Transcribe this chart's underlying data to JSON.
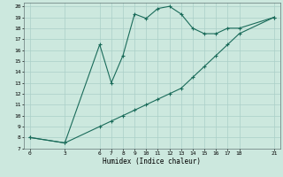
{
  "xlabel": "Humidex (Indice chaleur)",
  "bg_color": "#cce8de",
  "grid_color": "#aacfc8",
  "line_color": "#1a6b5a",
  "curve1_x": [
    0,
    3,
    6,
    7,
    8,
    9,
    10,
    11,
    12,
    13,
    14,
    15,
    16,
    17,
    18,
    21
  ],
  "curve1_y": [
    8,
    7.5,
    16.5,
    13,
    15.5,
    19.3,
    18.9,
    19.8,
    20,
    19.3,
    18,
    17.5,
    17.5,
    18,
    18,
    19
  ],
  "curve2_x": [
    0,
    3,
    6,
    7,
    8,
    9,
    10,
    11,
    12,
    13,
    14,
    15,
    16,
    17,
    18,
    21
  ],
  "curve2_y": [
    8,
    7.5,
    9.0,
    9.5,
    10.0,
    10.5,
    11.0,
    11.5,
    12.0,
    12.5,
    13.5,
    14.5,
    15.5,
    16.5,
    17.5,
    19.0
  ],
  "xlim": [
    -0.5,
    21.5
  ],
  "ylim": [
    7,
    20.3
  ],
  "xticks": [
    0,
    3,
    6,
    7,
    8,
    9,
    10,
    11,
    12,
    13,
    14,
    15,
    16,
    17,
    18,
    21
  ],
  "yticks": [
    7,
    8,
    9,
    10,
    11,
    12,
    13,
    14,
    15,
    16,
    17,
    18,
    19,
    20
  ]
}
